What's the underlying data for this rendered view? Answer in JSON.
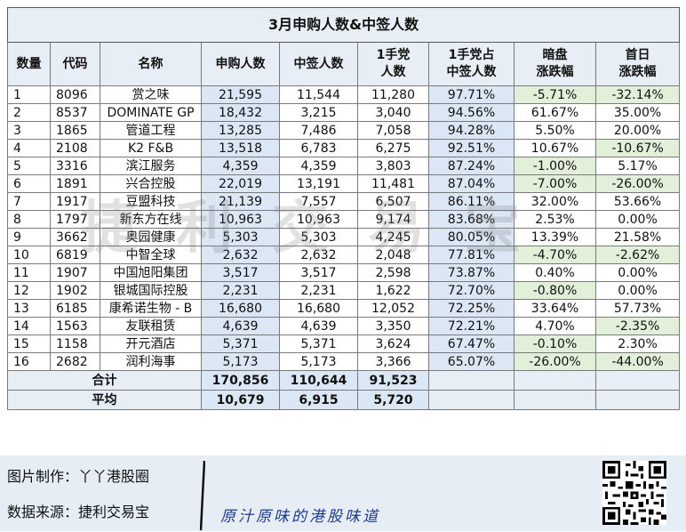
{
  "table": {
    "title": "3月申购人数&中签人数",
    "headers": {
      "no": "数量",
      "code": "代码",
      "name": "名称",
      "subscribers": "申购人数",
      "winners": "中签人数",
      "one_lot_line1": "1手党",
      "one_lot_line2": "人数",
      "pct_line1": "1手党占",
      "pct_line2": "中签人数",
      "dark_line1": "暗盘",
      "dark_line2": "涨跌幅",
      "first_line1": "首日",
      "first_line2": "涨跌幅"
    },
    "rows": [
      {
        "no": "1",
        "code": "8096",
        "name": "赏之味",
        "subscribers": "21,595",
        "winners": "11,544",
        "one_lot": "11,280",
        "pct": "97.71%",
        "dark": "-5.71%",
        "first": "-32.14%"
      },
      {
        "no": "2",
        "code": "8537",
        "name": "DOMINATE GP",
        "subscribers": "18,432",
        "winners": "3,215",
        "one_lot": "3,040",
        "pct": "94.56%",
        "dark": "61.67%",
        "first": "35.00%"
      },
      {
        "no": "3",
        "code": "1865",
        "name": "管道工程",
        "subscribers": "13,285",
        "winners": "7,486",
        "one_lot": "7,058",
        "pct": "94.28%",
        "dark": "5.50%",
        "first": "20.00%"
      },
      {
        "no": "4",
        "code": "2108",
        "name": "K2 F&B",
        "subscribers": "13,518",
        "winners": "6,783",
        "one_lot": "6,275",
        "pct": "92.51%",
        "dark": "10.67%",
        "first": "-10.67%"
      },
      {
        "no": "5",
        "code": "3316",
        "name": "滨江服务",
        "subscribers": "4,359",
        "winners": "4,359",
        "one_lot": "3,803",
        "pct": "87.24%",
        "dark": "-1.00%",
        "first": "5.17%"
      },
      {
        "no": "6",
        "code": "1891",
        "name": "兴合控股",
        "subscribers": "22,019",
        "winners": "13,191",
        "one_lot": "11,481",
        "pct": "87.04%",
        "dark": "-7.00%",
        "first": "-26.00%"
      },
      {
        "no": "7",
        "code": "1917",
        "name": "豆盟科技",
        "subscribers": "21,139",
        "winners": "7,557",
        "one_lot": "6,507",
        "pct": "86.11%",
        "dark": "32.00%",
        "first": "53.66%"
      },
      {
        "no": "8",
        "code": "1797",
        "name": "新东方在线",
        "subscribers": "10,963",
        "winners": "10,963",
        "one_lot": "9,174",
        "pct": "83.68%",
        "dark": "2.53%",
        "first": "0.00%"
      },
      {
        "no": "9",
        "code": "3662",
        "name": "奥园健康",
        "subscribers": "5,303",
        "winners": "5,303",
        "one_lot": "4,245",
        "pct": "80.05%",
        "dark": "13.39%",
        "first": "21.58%"
      },
      {
        "no": "10",
        "code": "6819",
        "name": "中智全球",
        "subscribers": "2,632",
        "winners": "2,632",
        "one_lot": "2,048",
        "pct": "77.81%",
        "dark": "-4.70%",
        "first": "-2.62%"
      },
      {
        "no": "11",
        "code": "1907",
        "name": "中国旭阳集团",
        "subscribers": "3,517",
        "winners": "3,517",
        "one_lot": "2,598",
        "pct": "73.87%",
        "dark": "0.40%",
        "first": "0.00%"
      },
      {
        "no": "12",
        "code": "1902",
        "name": "银城国际控股",
        "subscribers": "2,231",
        "winners": "2,231",
        "one_lot": "1,622",
        "pct": "72.70%",
        "dark": "-0.80%",
        "first": "0.00%"
      },
      {
        "no": "13",
        "code": "6185",
        "name": "康希诺生物 - B",
        "subscribers": "16,680",
        "winners": "16,680",
        "one_lot": "12,052",
        "pct": "72.25%",
        "dark": "33.64%",
        "first": "57.73%"
      },
      {
        "no": "14",
        "code": "1563",
        "name": "友联租赁",
        "subscribers": "4,639",
        "winners": "4,639",
        "one_lot": "3,350",
        "pct": "72.21%",
        "dark": "4.70%",
        "first": "-2.35%"
      },
      {
        "no": "15",
        "code": "1158",
        "name": "开元酒店",
        "subscribers": "5,371",
        "winners": "5,371",
        "one_lot": "3,624",
        "pct": "67.47%",
        "dark": "-0.10%",
        "first": "2.30%"
      },
      {
        "no": "16",
        "code": "2682",
        "name": "润利海事",
        "subscribers": "5,173",
        "winners": "5,173",
        "one_lot": "3,366",
        "pct": "65.07%",
        "dark": "-26.00%",
        "first": "-44.00%"
      }
    ],
    "total": {
      "label": "合计",
      "subscribers": "170,856",
      "winners": "110,644",
      "one_lot": "91,523"
    },
    "average": {
      "label": "平均",
      "subscribers": "10,679",
      "winners": "6,915",
      "one_lot": "5,720"
    }
  },
  "watermark": "捷利交易宝",
  "footer": {
    "credit": "图片制作：丫丫港股圈",
    "source": "数据来源：捷利交易宝",
    "slogan": "原汁原味的港股味道"
  },
  "colors": {
    "header_bg": "#e8eef6",
    "subscribers_bg": "#dbe7f4",
    "negative_highlight": "#e2efd9",
    "footer_bg": "#e6edf5",
    "slogan": "#1f3a8a"
  },
  "icons": {
    "qr": "qr-code-icon"
  }
}
